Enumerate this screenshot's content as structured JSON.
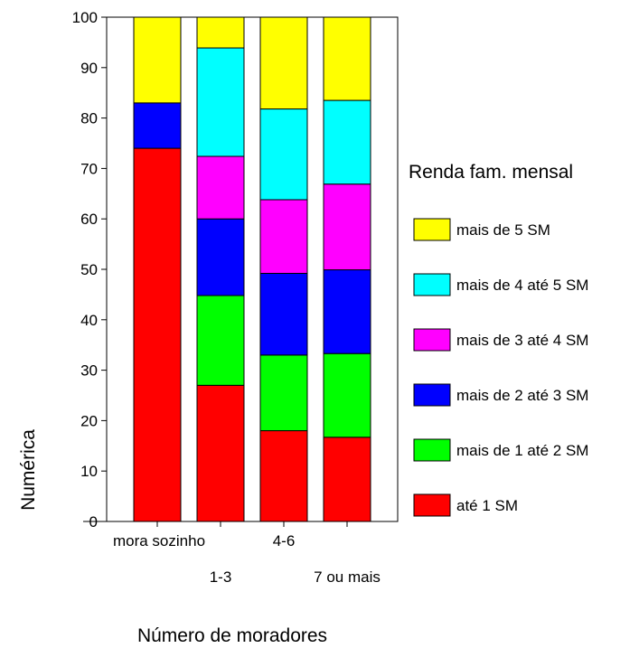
{
  "chart_data": {
    "type": "bar",
    "stacked": true,
    "percent_stacked": true,
    "title": "",
    "xlabel": "Número de moradores",
    "ylabel": "Numérica",
    "ylim": [
      0,
      100
    ],
    "yticks": [
      0,
      10,
      20,
      30,
      40,
      50,
      60,
      70,
      80,
      90,
      100
    ],
    "categories": [
      "mora sozinho",
      "1-3",
      "4-6",
      "7 ou mais"
    ],
    "legend": {
      "title": "Renda fam. mensal",
      "position": "right"
    },
    "series": [
      {
        "name": "até 1 SM",
        "color": "#ff0000",
        "values": [
          74,
          27,
          18,
          16.7
        ]
      },
      {
        "name": "mais de 1 até 2 SM",
        "color": "#00ff00",
        "values": [
          0,
          17.8,
          15,
          16.6
        ]
      },
      {
        "name": "mais de 2 até 3 SM",
        "color": "#0000ff",
        "values": [
          9,
          15.2,
          16.2,
          16.6
        ]
      },
      {
        "name": "mais de 3 até 4 SM",
        "color": "#ff00ff",
        "values": [
          0,
          12.4,
          14.6,
          17
        ]
      },
      {
        "name": "mais de 4 até 5 SM",
        "color": "#00ffff",
        "values": [
          0,
          21.5,
          18,
          16.6
        ]
      },
      {
        "name": "mais de 5 SM",
        "color": "#ffff00",
        "values": [
          17,
          6.1,
          18.2,
          16.5
        ]
      }
    ]
  }
}
